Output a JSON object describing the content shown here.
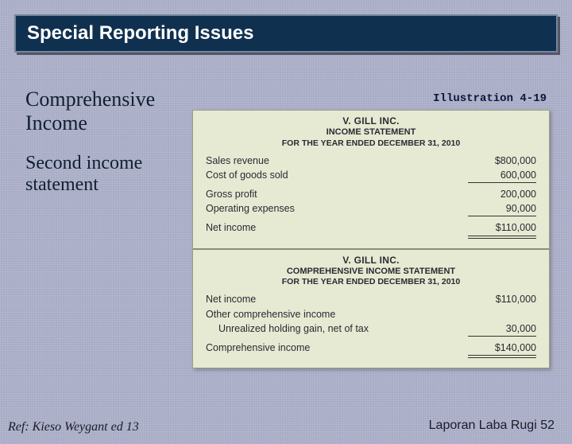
{
  "colors": {
    "slide_bg": "#a8acc5",
    "title_bg": "#103050",
    "title_border": "#7088a0",
    "title_text": "#ffffff",
    "stmt_bg": "#e6ead2",
    "stmt_border": "#9aa088",
    "body_text": "#2a2a33"
  },
  "title_bar": "Special Reporting Issues",
  "left": {
    "heading1": "Comprehensive Income",
    "heading2": "Second income statement"
  },
  "illustration_label": "Illustration 4-19",
  "stmt1": {
    "company": "V. GILL INC.",
    "title": "INCOME STATEMENT",
    "period": "FOR THE YEAR ENDED DECEMBER 31, 2010",
    "rows": {
      "sales_label": "Sales revenue",
      "sales_amt": "$800,000",
      "cogs_label": "Cost of goods sold",
      "cogs_amt": "600,000",
      "gp_label": "Gross profit",
      "gp_amt": "200,000",
      "opex_label": "Operating expenses",
      "opex_amt": "90,000",
      "ni_label": "Net income",
      "ni_amt": "$110,000"
    }
  },
  "stmt2": {
    "company": "V. GILL INC.",
    "title": "COMPREHENSIVE INCOME STATEMENT",
    "period": "FOR THE YEAR ENDED DECEMBER 31, 2010",
    "rows": {
      "ni_label": "Net income",
      "ni_amt": "$110,000",
      "oci_label": "Other comprehensive income",
      "uhg_label": "Unrealized holding gain, net of tax",
      "uhg_amt": "30,000",
      "ci_label": "Comprehensive income",
      "ci_amt": "$140,000"
    }
  },
  "footer": {
    "left": "Ref: Kieso Weygant ed 13",
    "right": "Laporan Laba Rugi 52"
  }
}
